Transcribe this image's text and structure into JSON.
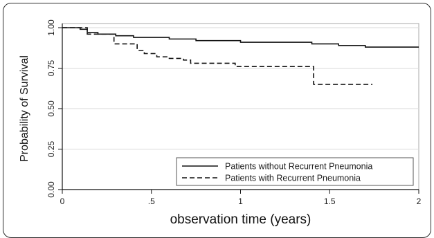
{
  "chart_data": {
    "type": "line",
    "xlabel": "observation time (years)",
    "ylabel": "Probability of Survival",
    "xlim": [
      0,
      2
    ],
    "ylim": [
      0,
      1
    ],
    "x_ticks": [
      0,
      0.5,
      1,
      1.5,
      2
    ],
    "x_tick_labels": [
      "0",
      ".5",
      "1",
      "1.5",
      "2"
    ],
    "y_ticks": [
      0,
      0.25,
      0.5,
      0.75,
      1
    ],
    "y_tick_labels": [
      "0.00",
      "0.25",
      "0.50",
      "0.75",
      "1.00"
    ],
    "grid": "horizontal",
    "legend_position": "bottom-right",
    "series": [
      {
        "name": "Patients without Recurrent Pneumonia",
        "line_style": "solid",
        "color": "#111111",
        "points": [
          [
            0,
            1.0
          ],
          [
            0.06,
            1.0
          ],
          [
            0.1,
            0.99
          ],
          [
            0.14,
            0.97
          ],
          [
            0.2,
            0.96
          ],
          [
            0.3,
            0.95
          ],
          [
            0.4,
            0.94
          ],
          [
            0.5,
            0.94
          ],
          [
            0.6,
            0.93
          ],
          [
            0.75,
            0.92
          ],
          [
            0.9,
            0.92
          ],
          [
            1.0,
            0.91
          ],
          [
            1.2,
            0.91
          ],
          [
            1.4,
            0.9
          ],
          [
            1.55,
            0.89
          ],
          [
            1.68,
            0.89
          ],
          [
            1.7,
            0.88
          ],
          [
            2.0,
            0.88
          ]
        ]
      },
      {
        "name": "Patients with Recurrent Pneumonia",
        "line_style": "dashed",
        "color": "#111111",
        "points": [
          [
            0,
            1.0
          ],
          [
            0.1,
            1.0
          ],
          [
            0.14,
            0.96
          ],
          [
            0.25,
            0.96
          ],
          [
            0.29,
            0.9
          ],
          [
            0.38,
            0.9
          ],
          [
            0.42,
            0.86
          ],
          [
            0.46,
            0.84
          ],
          [
            0.53,
            0.82
          ],
          [
            0.6,
            0.81
          ],
          [
            0.68,
            0.8
          ],
          [
            0.72,
            0.78
          ],
          [
            0.95,
            0.78
          ],
          [
            0.97,
            0.76
          ],
          [
            1.4,
            0.76
          ],
          [
            1.41,
            0.65
          ],
          [
            1.74,
            0.65
          ]
        ]
      }
    ]
  }
}
